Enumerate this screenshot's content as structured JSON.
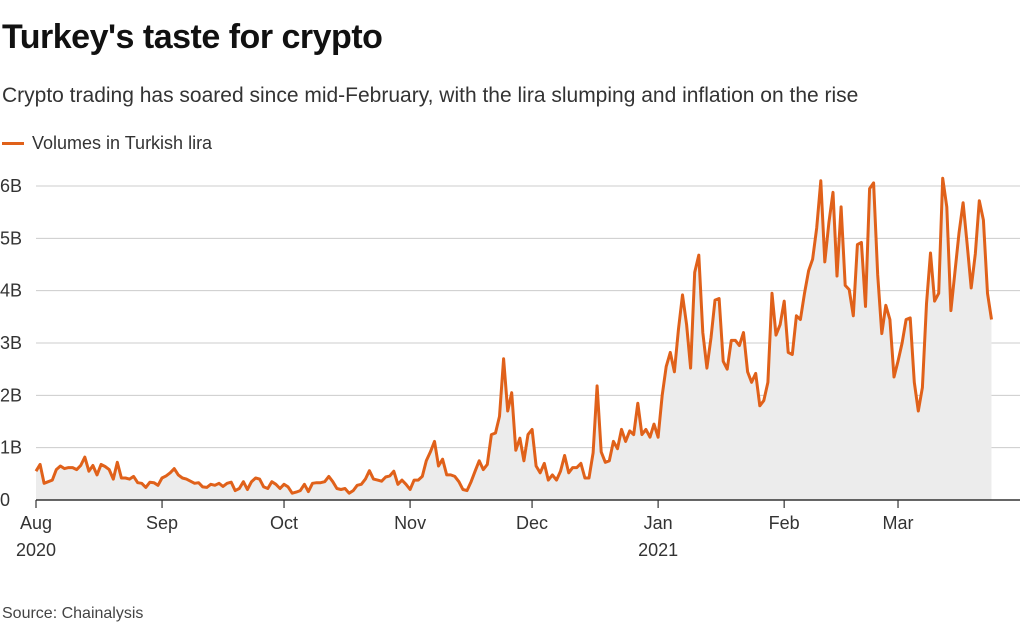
{
  "header": {
    "title": "Turkey's taste for crypto",
    "subtitle": "Crypto trading has soared since mid-February, with the lira slumping and inflation on the rise"
  },
  "footer": {
    "source": "Source: Chainalysis"
  },
  "colors": {
    "line": "#e0611a",
    "area": "#ececec",
    "grid": "#cccccc",
    "axis": "#333333"
  },
  "chart_data": {
    "type": "area",
    "title": "Turkey's taste for crypto",
    "subtitle": "Crypto trading has soared since mid-February, with the lira slumping and inflation on the rise",
    "xlabel": "",
    "ylabel": "",
    "ylim": [
      0,
      6000000000
    ],
    "grid": true,
    "legend_position": "top-left",
    "y_ticks": [
      {
        "value": 0,
        "label": "0"
      },
      {
        "value": 1000000000,
        "label": "1B"
      },
      {
        "value": 2000000000,
        "label": "2B"
      },
      {
        "value": 3000000000,
        "label": "3B"
      },
      {
        "value": 4000000000,
        "label": "4B"
      },
      {
        "value": 5000000000,
        "label": "5B"
      },
      {
        "value": 6000000000,
        "label": "6B"
      }
    ],
    "x_ticks": [
      {
        "date": "2020-08-01",
        "label": "Aug",
        "sublabel": "2020"
      },
      {
        "date": "2020-09-01",
        "label": "Sep",
        "sublabel": ""
      },
      {
        "date": "2020-10-01",
        "label": "Oct",
        "sublabel": ""
      },
      {
        "date": "2020-11-01",
        "label": "Nov",
        "sublabel": ""
      },
      {
        "date": "2020-12-01",
        "label": "Dec",
        "sublabel": ""
      },
      {
        "date": "2021-01-01",
        "label": "Jan",
        "sublabel": "2021"
      },
      {
        "date": "2021-02-01",
        "label": "Feb",
        "sublabel": ""
      },
      {
        "date": "2021-03-01",
        "label": "Mar",
        "sublabel": ""
      }
    ],
    "series": [
      {
        "name": "Volumes in Turkish lira",
        "points": [
          [
            "2020-08-01",
            0.55
          ],
          [
            "2020-08-02",
            0.68
          ],
          [
            "2020-08-03",
            0.32
          ],
          [
            "2020-08-04",
            0.35
          ],
          [
            "2020-08-05",
            0.38
          ],
          [
            "2020-08-06",
            0.58
          ],
          [
            "2020-08-07",
            0.65
          ],
          [
            "2020-08-08",
            0.6
          ],
          [
            "2020-08-09",
            0.62
          ],
          [
            "2020-08-10",
            0.62
          ],
          [
            "2020-08-11",
            0.58
          ],
          [
            "2020-08-12",
            0.66
          ],
          [
            "2020-08-13",
            0.82
          ],
          [
            "2020-08-14",
            0.55
          ],
          [
            "2020-08-15",
            0.66
          ],
          [
            "2020-08-16",
            0.48
          ],
          [
            "2020-08-17",
            0.68
          ],
          [
            "2020-08-18",
            0.64
          ],
          [
            "2020-08-19",
            0.58
          ],
          [
            "2020-08-20",
            0.4
          ],
          [
            "2020-08-21",
            0.72
          ],
          [
            "2020-08-22",
            0.42
          ],
          [
            "2020-08-23",
            0.42
          ],
          [
            "2020-08-24",
            0.4
          ],
          [
            "2020-08-25",
            0.45
          ],
          [
            "2020-08-26",
            0.33
          ],
          [
            "2020-08-27",
            0.32
          ],
          [
            "2020-08-28",
            0.24
          ],
          [
            "2020-08-29",
            0.34
          ],
          [
            "2020-08-30",
            0.33
          ],
          [
            "2020-08-31",
            0.28
          ],
          [
            "2020-09-01",
            0.42
          ],
          [
            "2020-09-02",
            0.46
          ],
          [
            "2020-09-03",
            0.52
          ],
          [
            "2020-09-04",
            0.6
          ],
          [
            "2020-09-05",
            0.48
          ],
          [
            "2020-09-06",
            0.42
          ],
          [
            "2020-09-07",
            0.4
          ],
          [
            "2020-09-08",
            0.36
          ],
          [
            "2020-09-09",
            0.32
          ],
          [
            "2020-09-10",
            0.33
          ],
          [
            "2020-09-11",
            0.25
          ],
          [
            "2020-09-12",
            0.24
          ],
          [
            "2020-09-13",
            0.3
          ],
          [
            "2020-09-14",
            0.28
          ],
          [
            "2020-09-15",
            0.32
          ],
          [
            "2020-09-16",
            0.26
          ],
          [
            "2020-09-17",
            0.32
          ],
          [
            "2020-09-18",
            0.34
          ],
          [
            "2020-09-19",
            0.18
          ],
          [
            "2020-09-20",
            0.22
          ],
          [
            "2020-09-21",
            0.35
          ],
          [
            "2020-09-22",
            0.2
          ],
          [
            "2020-09-23",
            0.35
          ],
          [
            "2020-09-24",
            0.42
          ],
          [
            "2020-09-25",
            0.4
          ],
          [
            "2020-09-26",
            0.25
          ],
          [
            "2020-09-27",
            0.22
          ],
          [
            "2020-09-28",
            0.35
          ],
          [
            "2020-09-29",
            0.3
          ],
          [
            "2020-09-30",
            0.22
          ],
          [
            "2020-10-01",
            0.3
          ],
          [
            "2020-10-02",
            0.25
          ],
          [
            "2020-10-03",
            0.13
          ],
          [
            "2020-10-04",
            0.15
          ],
          [
            "2020-10-05",
            0.18
          ],
          [
            "2020-10-06",
            0.3
          ],
          [
            "2020-10-07",
            0.16
          ],
          [
            "2020-10-08",
            0.32
          ],
          [
            "2020-10-09",
            0.33
          ],
          [
            "2020-10-10",
            0.33
          ],
          [
            "2020-10-11",
            0.35
          ],
          [
            "2020-10-12",
            0.45
          ],
          [
            "2020-10-13",
            0.35
          ],
          [
            "2020-10-14",
            0.22
          ],
          [
            "2020-10-15",
            0.2
          ],
          [
            "2020-10-16",
            0.22
          ],
          [
            "2020-10-17",
            0.13
          ],
          [
            "2020-10-18",
            0.18
          ],
          [
            "2020-10-19",
            0.28
          ],
          [
            "2020-10-20",
            0.3
          ],
          [
            "2020-10-21",
            0.4
          ],
          [
            "2020-10-22",
            0.56
          ],
          [
            "2020-10-23",
            0.4
          ],
          [
            "2020-10-24",
            0.38
          ],
          [
            "2020-10-25",
            0.36
          ],
          [
            "2020-10-26",
            0.44
          ],
          [
            "2020-10-27",
            0.46
          ],
          [
            "2020-10-28",
            0.55
          ],
          [
            "2020-10-29",
            0.3
          ],
          [
            "2020-10-30",
            0.38
          ],
          [
            "2020-10-31",
            0.3
          ],
          [
            "2020-11-01",
            0.2
          ],
          [
            "2020-11-02",
            0.38
          ],
          [
            "2020-11-03",
            0.38
          ],
          [
            "2020-11-04",
            0.45
          ],
          [
            "2020-11-05",
            0.75
          ],
          [
            "2020-11-06",
            0.92
          ],
          [
            "2020-11-07",
            1.12
          ],
          [
            "2020-11-08",
            0.65
          ],
          [
            "2020-11-09",
            0.78
          ],
          [
            "2020-11-10",
            0.48
          ],
          [
            "2020-11-11",
            0.48
          ],
          [
            "2020-11-12",
            0.45
          ],
          [
            "2020-11-13",
            0.35
          ],
          [
            "2020-11-14",
            0.2
          ],
          [
            "2020-11-15",
            0.18
          ],
          [
            "2020-11-16",
            0.35
          ],
          [
            "2020-11-17",
            0.55
          ],
          [
            "2020-11-18",
            0.75
          ],
          [
            "2020-11-19",
            0.58
          ],
          [
            "2020-11-20",
            0.68
          ],
          [
            "2020-11-21",
            1.25
          ],
          [
            "2020-11-22",
            1.28
          ],
          [
            "2020-11-23",
            1.6
          ],
          [
            "2020-11-24",
            2.7
          ],
          [
            "2020-11-25",
            1.7
          ],
          [
            "2020-11-26",
            2.05
          ],
          [
            "2020-11-27",
            0.95
          ],
          [
            "2020-11-28",
            1.18
          ],
          [
            "2020-11-29",
            0.75
          ],
          [
            "2020-11-30",
            1.25
          ],
          [
            "2020-12-01",
            1.35
          ],
          [
            "2020-12-02",
            0.65
          ],
          [
            "2020-12-03",
            0.52
          ],
          [
            "2020-12-04",
            0.7
          ],
          [
            "2020-12-05",
            0.38
          ],
          [
            "2020-12-06",
            0.48
          ],
          [
            "2020-12-07",
            0.38
          ],
          [
            "2020-12-08",
            0.55
          ],
          [
            "2020-12-09",
            0.85
          ],
          [
            "2020-12-10",
            0.52
          ],
          [
            "2020-12-11",
            0.62
          ],
          [
            "2020-12-12",
            0.62
          ],
          [
            "2020-12-13",
            0.7
          ],
          [
            "2020-12-14",
            0.42
          ],
          [
            "2020-12-15",
            0.42
          ],
          [
            "2020-12-16",
            0.9
          ],
          [
            "2020-12-17",
            2.18
          ],
          [
            "2020-12-18",
            0.92
          ],
          [
            "2020-12-19",
            0.72
          ],
          [
            "2020-12-20",
            0.75
          ],
          [
            "2020-12-21",
            1.12
          ],
          [
            "2020-12-22",
            0.98
          ],
          [
            "2020-12-23",
            1.35
          ],
          [
            "2020-12-24",
            1.12
          ],
          [
            "2020-12-25",
            1.32
          ],
          [
            "2020-12-26",
            1.25
          ],
          [
            "2020-12-27",
            1.85
          ],
          [
            "2020-12-28",
            1.25
          ],
          [
            "2020-12-29",
            1.35
          ],
          [
            "2020-12-30",
            1.2
          ],
          [
            "2020-12-31",
            1.45
          ],
          [
            "2021-01-01",
            1.2
          ],
          [
            "2021-01-02",
            2.0
          ],
          [
            "2021-01-03",
            2.55
          ],
          [
            "2021-01-04",
            2.82
          ],
          [
            "2021-01-05",
            2.45
          ],
          [
            "2021-01-06",
            3.25
          ],
          [
            "2021-01-07",
            3.92
          ],
          [
            "2021-01-08",
            3.35
          ],
          [
            "2021-01-09",
            2.52
          ],
          [
            "2021-01-10",
            4.35
          ],
          [
            "2021-01-11",
            4.68
          ],
          [
            "2021-01-12",
            3.2
          ],
          [
            "2021-01-13",
            2.52
          ],
          [
            "2021-01-14",
            3.1
          ],
          [
            "2021-01-15",
            3.82
          ],
          [
            "2021-01-16",
            3.85
          ],
          [
            "2021-01-17",
            2.65
          ],
          [
            "2021-01-18",
            2.5
          ],
          [
            "2021-01-19",
            3.05
          ],
          [
            "2021-01-20",
            3.05
          ],
          [
            "2021-01-21",
            2.95
          ],
          [
            "2021-01-22",
            3.2
          ],
          [
            "2021-01-23",
            2.45
          ],
          [
            "2021-01-24",
            2.25
          ],
          [
            "2021-01-25",
            2.42
          ],
          [
            "2021-01-26",
            1.8
          ],
          [
            "2021-01-27",
            1.9
          ],
          [
            "2021-01-28",
            2.25
          ],
          [
            "2021-01-29",
            3.95
          ],
          [
            "2021-01-30",
            3.15
          ],
          [
            "2021-01-31",
            3.35
          ],
          [
            "2021-02-01",
            3.8
          ],
          [
            "2021-02-02",
            2.82
          ],
          [
            "2021-02-03",
            2.78
          ],
          [
            "2021-02-04",
            3.52
          ],
          [
            "2021-02-05",
            3.45
          ],
          [
            "2021-02-06",
            3.95
          ],
          [
            "2021-02-07",
            4.38
          ],
          [
            "2021-02-08",
            4.6
          ],
          [
            "2021-02-09",
            5.2
          ],
          [
            "2021-02-10",
            6.1
          ],
          [
            "2021-02-11",
            4.55
          ],
          [
            "2021-02-12",
            5.3
          ],
          [
            "2021-02-13",
            5.88
          ],
          [
            "2021-02-14",
            4.28
          ],
          [
            "2021-02-15",
            5.6
          ],
          [
            "2021-02-16",
            4.1
          ],
          [
            "2021-02-17",
            4.02
          ],
          [
            "2021-02-18",
            3.52
          ],
          [
            "2021-02-19",
            4.88
          ],
          [
            "2021-02-20",
            4.92
          ],
          [
            "2021-02-21",
            3.7
          ],
          [
            "2021-02-22",
            5.95
          ],
          [
            "2021-02-23",
            6.06
          ],
          [
            "2021-02-24",
            4.3
          ],
          [
            "2021-02-25",
            3.18
          ],
          [
            "2021-02-26",
            3.72
          ],
          [
            "2021-02-27",
            3.45
          ],
          [
            "2021-02-28",
            2.35
          ],
          [
            "2021-03-01",
            2.65
          ],
          [
            "2021-03-02",
            3.0
          ],
          [
            "2021-03-03",
            3.45
          ],
          [
            "2021-03-04",
            3.48
          ],
          [
            "2021-03-05",
            2.25
          ],
          [
            "2021-03-06",
            1.7
          ],
          [
            "2021-03-07",
            2.15
          ],
          [
            "2021-03-08",
            3.75
          ],
          [
            "2021-03-09",
            4.72
          ],
          [
            "2021-03-10",
            3.8
          ],
          [
            "2021-03-11",
            3.95
          ],
          [
            "2021-03-12",
            6.15
          ],
          [
            "2021-03-13",
            5.6
          ],
          [
            "2021-03-14",
            3.62
          ],
          [
            "2021-03-15",
            4.35
          ],
          [
            "2021-03-16",
            5.1
          ],
          [
            "2021-03-17",
            5.68
          ],
          [
            "2021-03-18",
            4.9
          ],
          [
            "2021-03-19",
            4.05
          ],
          [
            "2021-03-20",
            4.7
          ],
          [
            "2021-03-21",
            5.72
          ],
          [
            "2021-03-22",
            5.35
          ],
          [
            "2021-03-23",
            3.95
          ],
          [
            "2021-03-24",
            3.45
          ]
        ]
      }
    ]
  }
}
